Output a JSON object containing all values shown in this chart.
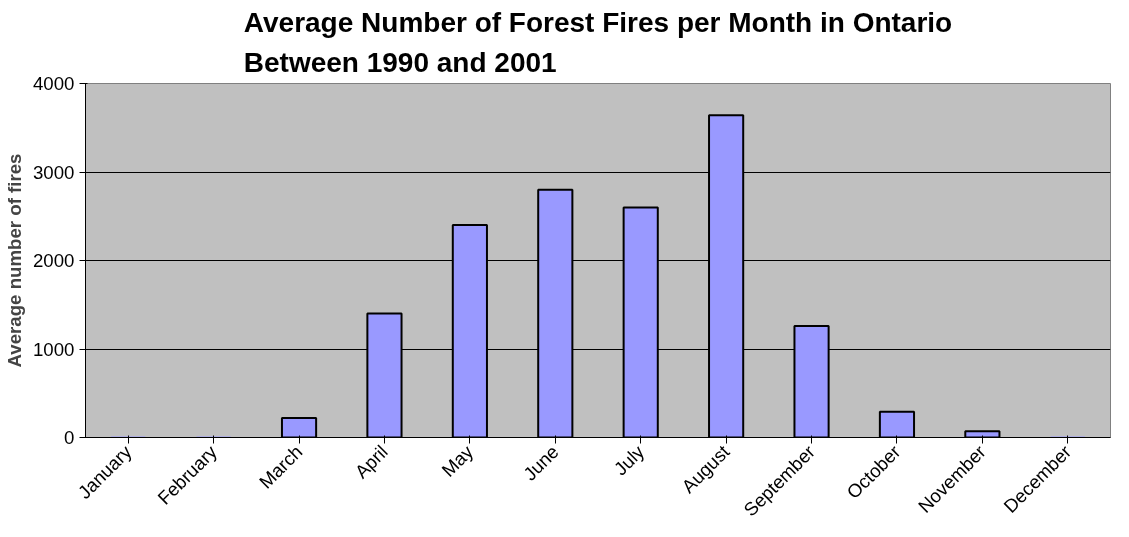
{
  "chart_data": {
    "type": "bar",
    "title": "Average Number of Forest Fires per Month in Ontario\nBetween 1990 and 2001",
    "ylabel": "Average number of fires",
    "categories": [
      "January",
      "February",
      "March",
      "April",
      "May",
      "June",
      "July",
      "August",
      "September",
      "October",
      "November",
      "December"
    ],
    "values": [
      0,
      0,
      220,
      1400,
      2400,
      2800,
      2600,
      3640,
      1260,
      290,
      70,
      0
    ],
    "color": "#9999ff",
    "ylim": [
      0,
      4000
    ],
    "yticks": [
      0,
      1000,
      2000,
      3000,
      4000
    ],
    "grid": "y"
  }
}
